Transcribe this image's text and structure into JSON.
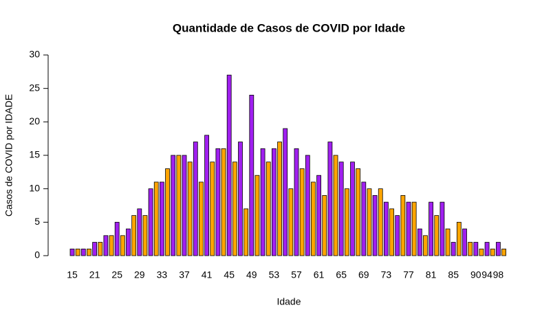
{
  "chart_data": {
    "type": "bar",
    "title": "Quantidade de Casos de COVID por Idade",
    "x_label": "Idade",
    "y_label": "Casos de COVID por IDADE",
    "categories": [
      15,
      null,
      null,
      null,
      21,
      null,
      null,
      null,
      25,
      null,
      null,
      null,
      29,
      null,
      null,
      null,
      33,
      null,
      null,
      null,
      37,
      null,
      null,
      null,
      41,
      null,
      null,
      null,
      45,
      null,
      null,
      null,
      49,
      null,
      null,
      null,
      53,
      null,
      null,
      null,
      57,
      null,
      null,
      null,
      61,
      null,
      null,
      null,
      65,
      null,
      null,
      null,
      69,
      null,
      null,
      null,
      73,
      null,
      null,
      null,
      77,
      null,
      null,
      null,
      81,
      null,
      null,
      null,
      85,
      null,
      null,
      null,
      90,
      null,
      94,
      null,
      98,
      null
    ],
    "values": [
      1,
      1,
      1,
      1,
      2,
      2,
      3,
      3,
      5,
      3,
      4,
      6,
      7,
      6,
      10,
      11,
      11,
      13,
      15,
      15,
      15,
      14,
      17,
      11,
      18,
      14,
      16,
      16,
      27,
      14,
      17,
      7,
      24,
      12,
      16,
      14,
      16,
      17,
      19,
      10,
      16,
      13,
      15,
      11,
      12,
      9,
      17,
      15,
      14,
      10,
      14,
      13,
      11,
      10,
      9,
      10,
      8,
      7,
      6,
      9,
      8,
      8,
      4,
      3,
      8,
      6,
      8,
      4,
      2,
      5,
      4,
      2,
      2,
      1,
      2,
      1,
      2,
      1
    ],
    "colors": [
      "#a020f0",
      "#ffa500"
    ],
    "ylim": [
      0,
      30
    ],
    "yticks": [
      0,
      5,
      10,
      15,
      20,
      25,
      30
    ]
  }
}
